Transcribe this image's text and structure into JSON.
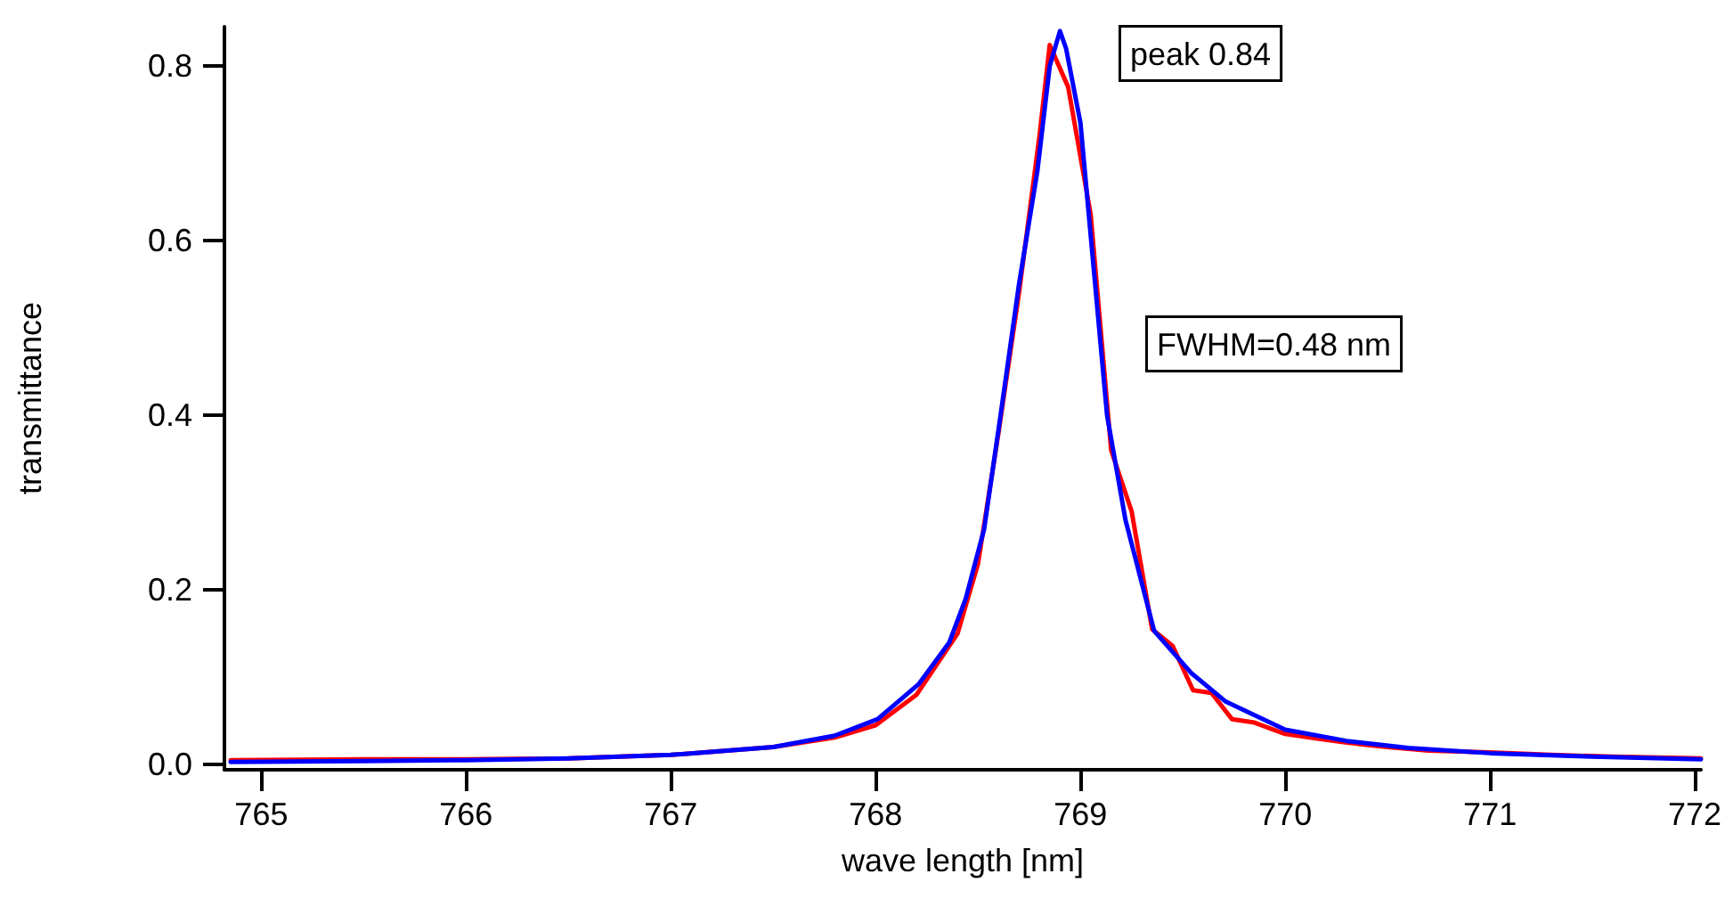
{
  "chart_data": {
    "type": "line",
    "xlabel": "wave length [nm]",
    "ylabel": "transmittance",
    "annotations": [
      "peak 0.84",
      "FWHM=0.48 nm"
    ],
    "xlim": [
      764.82,
      772.03
    ],
    "xticks": [
      765,
      766,
      767,
      768,
      769,
      770,
      771,
      772
    ],
    "ylim": [
      -0.006,
      0.845
    ],
    "yticks": [
      {
        "value": 0,
        "label": "0.0"
      },
      0.2,
      0.4,
      0.6,
      0.8
    ],
    "marker": "none",
    "line_style": "solid",
    "series": [
      {
        "color": "#ff0000",
        "x": [
          764.85,
          765.5,
          766,
          766.5,
          767,
          767.5,
          767.8,
          768,
          768.2,
          768.4,
          768.5,
          768.6,
          768.7,
          768.8,
          768.85,
          768.94,
          769.05,
          769.15,
          769.25,
          769.35,
          769.45,
          769.55,
          769.64,
          769.74,
          769.85,
          770,
          770.15,
          770.3,
          770.5,
          770.7,
          771,
          771.3,
          771.6,
          772.03
        ],
        "values": [
          0.005,
          0.006,
          0.006,
          0.007,
          0.011,
          0.02,
          0.031,
          0.045,
          0.08,
          0.15,
          0.23,
          0.38,
          0.54,
          0.72,
          0.824,
          0.776,
          0.63,
          0.36,
          0.29,
          0.155,
          0.136,
          0.085,
          0.082,
          0.052,
          0.048,
          0.035,
          0.03,
          0.025,
          0.02,
          0.016,
          0.014,
          0.011,
          0.009,
          0.007
        ]
      },
      {
        "color": "#0000ff",
        "x": [
          764.85,
          765.5,
          766,
          766.5,
          767,
          767.5,
          767.8,
          768.01,
          768.21,
          768.36,
          768.44,
          768.53,
          768.61,
          768.7,
          768.79,
          768.85,
          768.9,
          768.93,
          769,
          769.13,
          769.22,
          769.36,
          769.54,
          769.71,
          770,
          770.3,
          770.6,
          771,
          771.5,
          772.03
        ],
        "values": [
          0.003,
          0.004,
          0.005,
          0.007,
          0.011,
          0.02,
          0.033,
          0.052,
          0.092,
          0.14,
          0.19,
          0.27,
          0.4,
          0.55,
          0.68,
          0.8,
          0.84,
          0.82,
          0.735,
          0.4,
          0.28,
          0.153,
          0.105,
          0.072,
          0.04,
          0.027,
          0.019,
          0.013,
          0.009,
          0.006
        ]
      }
    ]
  }
}
